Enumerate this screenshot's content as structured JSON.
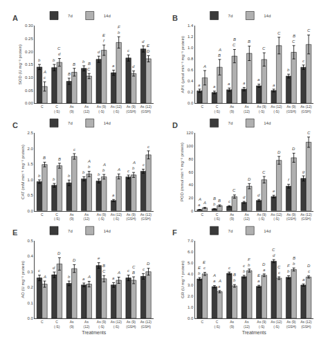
{
  "chart_data": [
    {
      "type": "bar",
      "title": "A",
      "ylabel": "SOD (U mg⁻¹ protein)",
      "categories": [
        "C",
        "C\n(-S)",
        "As\n(9)",
        "As\n(12)",
        "As (9)\n(-S)",
        "As (12)\n(-S)",
        "As (9)\n(GSH)",
        "As (12)\n(GSH)"
      ],
      "series": [
        {
          "name": "7d",
          "color": "#3a3a3a",
          "values": [
            0.14,
            0.138,
            0.085,
            0.135,
            0.17,
            0.118,
            0.175,
            0.21
          ],
          "errors": [
            0.01,
            0.012,
            0.012,
            0.01,
            0.012,
            0.01,
            0.012,
            0.012
          ],
          "letters": [
            "b",
            "b",
            "B",
            "b",
            "d",
            "a",
            "c",
            "d"
          ]
        },
        {
          "name": "14d",
          "color": "#b0b0b0",
          "values": [
            0.065,
            0.158,
            0.12,
            0.105,
            0.205,
            0.235,
            0.115,
            0.172
          ],
          "errors": [
            0.018,
            0.015,
            0.015,
            0.01,
            0.02,
            0.022,
            0.01,
            0.012
          ],
          "letters": [
            "c",
            "d",
            "B",
            "C",
            "f",
            "b",
            "d",
            "D"
          ],
          "letters_upper": [
            "A",
            "C",
            null,
            "B",
            "E",
            "F",
            null,
            "E"
          ]
        }
      ],
      "ylim": [
        0.0,
        0.3
      ],
      "yticks": [
        {
          "value": 0,
          "label": "0.00"
        },
        0.05,
        {
          "value": 0.1,
          "label": "0.10"
        },
        0.15,
        {
          "value": 0.2,
          "label": "0.20"
        },
        0.25,
        {
          "value": 0.3,
          "label": "0.30"
        }
      ],
      "grid": false,
      "legend": "upper left"
    },
    {
      "type": "bar",
      "title": "B",
      "ylabel": "APX (µmol min⁻¹ mg⁻¹ protein)",
      "categories": [
        "C",
        "C\n(-S)",
        "As\n(9)",
        "As\n(12)",
        "As (9)\n(-S)",
        "As (12)\n(-S)",
        "As (9)\n(GSH)",
        "As (12)\n(GSH)"
      ],
      "series": [
        {
          "name": "7d",
          "color": "#3a3a3a",
          "values": [
            0.225,
            0.195,
            0.245,
            0.255,
            0.315,
            0.23,
            0.49,
            0.65
          ],
          "errors": [
            0.03,
            0.025,
            0.03,
            0.03,
            0.03,
            0.025,
            0.035,
            0.04
          ],
          "letters": [
            "a",
            "a",
            "a",
            "a",
            "a",
            "a",
            "b",
            "c"
          ]
        },
        {
          "name": "14d",
          "color": "#b0b0b0",
          "values": [
            0.46,
            0.65,
            0.85,
            0.9,
            0.79,
            1.04,
            0.92,
            1.06
          ],
          "errors": [
            0.13,
            0.14,
            0.12,
            0.13,
            0.12,
            0.15,
            0.12,
            0.17
          ],
          "letters": [
            "A",
            "B",
            "C",
            "B",
            "C",
            "C",
            "C",
            "C"
          ],
          "letters_upper": [
            null,
            "A",
            "B",
            null,
            null,
            null,
            "B",
            null
          ]
        }
      ],
      "ylim": [
        0.0,
        1.4
      ],
      "yticks": [
        {
          "value": 0,
          "label": "0.0"
        },
        0.2,
        0.4,
        0.6,
        0.8,
        {
          "value": 1,
          "label": "1.0"
        },
        1.2,
        1.4
      ],
      "grid": false,
      "legend": "upper left"
    },
    {
      "type": "bar",
      "title": "C",
      "ylabel": "CAT (mM min⁻¹ mg⁻¹ protein)",
      "categories": [
        "C",
        "C\n(-S)",
        "As\n(9)",
        "As\n(12)",
        "As (9)\n(-S)",
        "As (12)\n(-S)",
        "As (9)\n(GSH)",
        "As (12)\n(GSH)"
      ],
      "series": [
        {
          "name": "7d",
          "color": "#3a3a3a",
          "values": [
            0.94,
            0.82,
            0.9,
            1.03,
            0.96,
            0.33,
            1.09,
            1.275
          ],
          "errors": [
            0.055,
            0.06,
            0.09,
            0.065,
            0.065,
            0.035,
            0.06,
            0.065
          ],
          "letters": [
            "b",
            "b",
            "b",
            "b",
            "b",
            "a",
            "c",
            "c"
          ]
        },
        {
          "name": "14d",
          "color": "#b0b0b0",
          "values": [
            1.49,
            1.45,
            1.75,
            1.185,
            1.095,
            1.105,
            1.155,
            1.8
          ],
          "errors": [
            0.075,
            0.08,
            0.09,
            0.085,
            0.075,
            0.08,
            0.08,
            0.13
          ],
          "letters": [
            "B",
            "B",
            "c",
            "b",
            "b",
            "A",
            "b",
            "c"
          ],
          "letters_upper": [
            null,
            null,
            null,
            "A",
            "A",
            null,
            "A",
            null
          ]
        }
      ],
      "ylim": [
        0.0,
        2.5
      ],
      "yticks": [
        {
          "value": 0,
          "label": "0.0"
        },
        0.5,
        {
          "value": 1,
          "label": "1.0"
        },
        1.5,
        {
          "value": 2,
          "label": "2.0"
        },
        2.5
      ],
      "grid": false,
      "legend": "upper left"
    },
    {
      "type": "bar",
      "title": "D",
      "ylabel": "POD (mmol min⁻¹ mg⁻¹ protein)",
      "categories": [
        "C",
        "C\n(-S)",
        "As\n(9)",
        "As\n(12)",
        "As (9)\n(-S)",
        "As (12)\n(-S)",
        "As (9)\n(GSH)",
        "As (12)\n(GSH)"
      ],
      "series": [
        {
          "name": "7d",
          "color": "#3a3a3a",
          "values": [
            1.8,
            3.0,
            7.0,
            13.0,
            16.0,
            22.0,
            38.0,
            50.0
          ],
          "errors": [
            0.4,
            0.5,
            1.0,
            1.5,
            1.5,
            2.0,
            3.0,
            4.0
          ],
          "letters": [
            "a",
            "b",
            "c",
            "d",
            "d",
            "e",
            "f",
            "g"
          ],
          "letters_upper": [
            "A",
            "B",
            null,
            null,
            null,
            null,
            null,
            null
          ]
        },
        {
          "name": "14d",
          "color": "#b0b0b0",
          "values": [
            4.5,
            8.0,
            22.0,
            38.0,
            48.0,
            78.0,
            82.0,
            106.0
          ],
          "errors": [
            0.8,
            1.2,
            2.5,
            4.0,
            5.0,
            6.0,
            7.0,
            8.0
          ],
          "letters": [
            "A",
            "B",
            "C",
            "D",
            "C",
            "D",
            "D",
            "C"
          ]
        }
      ],
      "ylim": [
        0.0,
        120.0
      ],
      "yticks": [
        0,
        20,
        40,
        60,
        80,
        100,
        120
      ],
      "grid": false,
      "legend": "upper left"
    },
    {
      "type": "bar",
      "title": "E",
      "ylabel": "AO (U mg⁻¹ protein)",
      "xlabel": "Treatments",
      "categories": [
        "C",
        "C\n(-S)",
        "As\n(9)",
        "As\n(12)",
        "As (9)\n(-S)",
        "As (12)\n(-S)",
        "As (9)\n(GSH)",
        "As (12)\n(GSH)"
      ],
      "series": [
        {
          "name": "7d",
          "color": "#3a3a3a",
          "values": [
            0.26,
            0.28,
            0.225,
            0.215,
            0.34,
            0.215,
            0.26,
            0.27
          ],
          "errors": [
            0.018,
            0.018,
            0.015,
            0.012,
            0.018,
            0.015,
            0.018,
            0.018
          ],
          "letters": [
            "c",
            "d",
            "b",
            "a",
            "e",
            "a",
            "c",
            "c"
          ]
        },
        {
          "name": "14d",
          "color": "#b0b0b0",
          "values": [
            0.22,
            0.35,
            0.32,
            0.22,
            0.255,
            0.245,
            0.245,
            0.3
          ],
          "errors": [
            0.02,
            0.04,
            0.025,
            0.018,
            0.02,
            0.02,
            0.022,
            0.022
          ],
          "letters": [
            "A",
            "D",
            "D",
            "A",
            "C",
            "A",
            "B",
            "D"
          ],
          "letters_upper": [
            null,
            null,
            null,
            null,
            "B",
            null,
            "C",
            null
          ]
        }
      ],
      "ylim": [
        0.0,
        0.5
      ],
      "yticks": [
        {
          "value": 0,
          "label": "0.0"
        },
        0.1,
        0.2,
        0.3,
        0.4,
        0.5
      ],
      "grid": false,
      "legend": "upper left"
    },
    {
      "type": "bar",
      "title": "F",
      "ylabel": "GR (U mg⁻¹ protein)",
      "xlabel": "Treatments",
      "categories": [
        "C",
        "C\n(-S)",
        "As\n(9)",
        "As\n(12)",
        "As (9)\n(-S)",
        "As (12)\n(-S)",
        "As (9)\n(GSH)",
        "As (12)\n(GSH)"
      ],
      "series": [
        {
          "name": "7d",
          "color": "#3a3a3a",
          "values": [
            3.55,
            2.85,
            4.05,
            3.75,
            2.88,
            5.15,
            3.7,
            3.0
          ],
          "errors": [
            0.12,
            0.1,
            0.12,
            0.12,
            0.1,
            0.14,
            0.14,
            0.1
          ],
          "letters": [
            "b",
            "a",
            "c",
            "b",
            "a",
            "d",
            "b",
            "a"
          ],
          "letters_upper": [
            "E",
            "A",
            null,
            "c",
            "E",
            "C",
            "F",
            null
          ]
        },
        {
          "name": "14d",
          "color": "#b0b0b0",
          "values": [
            4.0,
            2.4,
            2.92,
            4.3,
            3.88,
            3.62,
            4.4,
            3.72
          ],
          "errors": [
            0.14,
            0.1,
            0.12,
            0.14,
            0.12,
            0.12,
            0.14,
            0.1
          ],
          "letters": [
            "c",
            "a",
            "b",
            "b",
            "a",
            "c",
            "b",
            "c"
          ],
          "letters_upper": [
            "E",
            "A",
            "B",
            "F",
            "D",
            "C",
            "B",
            "D"
          ]
        }
      ],
      "ylim": [
        0.0,
        7.0
      ],
      "yticks": [
        {
          "value": 0,
          "label": "0.0"
        },
        {
          "value": 1,
          "label": "1.0"
        },
        {
          "value": 2,
          "label": "2.0"
        },
        {
          "value": 3,
          "label": "3.0"
        },
        {
          "value": 4,
          "label": "4.0"
        },
        {
          "value": 5,
          "label": "5.0"
        },
        {
          "value": 6,
          "label": "6.0"
        },
        {
          "value": 7,
          "label": "7.0"
        }
      ],
      "grid": false,
      "legend": "upper left"
    }
  ]
}
